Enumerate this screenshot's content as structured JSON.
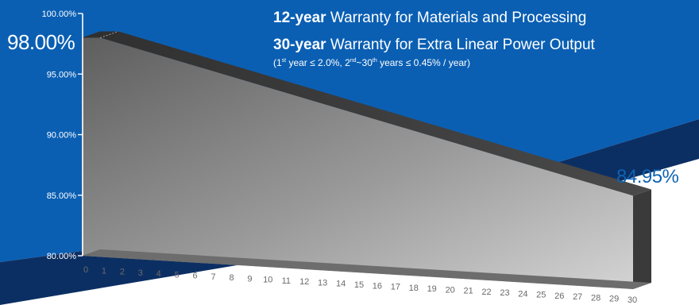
{
  "colors": {
    "background_blue": "#0a5fb3",
    "navy_band": "#0c2f63",
    "highlight_text": "#0e63b3",
    "bar_front_dark": "#5e5e5e",
    "bar_front_light": "#d4d4d4",
    "bar_top": "#3d3d3d",
    "bar_side": "#3a3a3a"
  },
  "header": {
    "line1_bold": "12-year",
    "line1_rest": " Warranty for Materials and Processing",
    "line2_bold": "30-year",
    "line2_rest": " Warranty for Extra Linear Power Output",
    "note": {
      "p1": "(1",
      "s1": "st",
      "p2": " year ≤ 2.0%, 2",
      "s2": "nd",
      "p3": "~30",
      "s3": "th",
      "p4": " years ≤ 0.45% / year)"
    }
  },
  "callouts": {
    "start_value": "98.00%",
    "end_value": "84.95%"
  },
  "chart_data": {
    "type": "area",
    "title": "",
    "xlabel": "",
    "ylabel": "",
    "x": [
      0,
      1,
      2,
      3,
      4,
      5,
      6,
      7,
      8,
      9,
      10,
      11,
      12,
      13,
      14,
      15,
      16,
      17,
      18,
      19,
      20,
      21,
      22,
      23,
      24,
      25,
      26,
      27,
      28,
      29,
      30
    ],
    "x_tick_labels": [
      "0",
      "1",
      "2",
      "3",
      "4",
      "5",
      "6",
      "7",
      "8",
      "9",
      "10",
      "11",
      "12",
      "13",
      "14",
      "15",
      "16",
      "17",
      "18",
      "19",
      "20",
      "21",
      "22",
      "23",
      "24",
      "25",
      "26",
      "27",
      "28",
      "29",
      "30"
    ],
    "y_tick_labels": [
      "100.00%",
      "95.00%",
      "90.00%",
      "85.00%",
      "80.00%"
    ],
    "y_ticks": [
      100,
      95,
      90,
      85,
      80
    ],
    "ylim": [
      80,
      100
    ],
    "series": [
      {
        "x": [
          0,
          1,
          30
        ],
        "values": [
          98.0,
          98.0,
          84.95
        ]
      }
    ],
    "grid": false,
    "legend": "none",
    "style": "3d-extruded"
  }
}
